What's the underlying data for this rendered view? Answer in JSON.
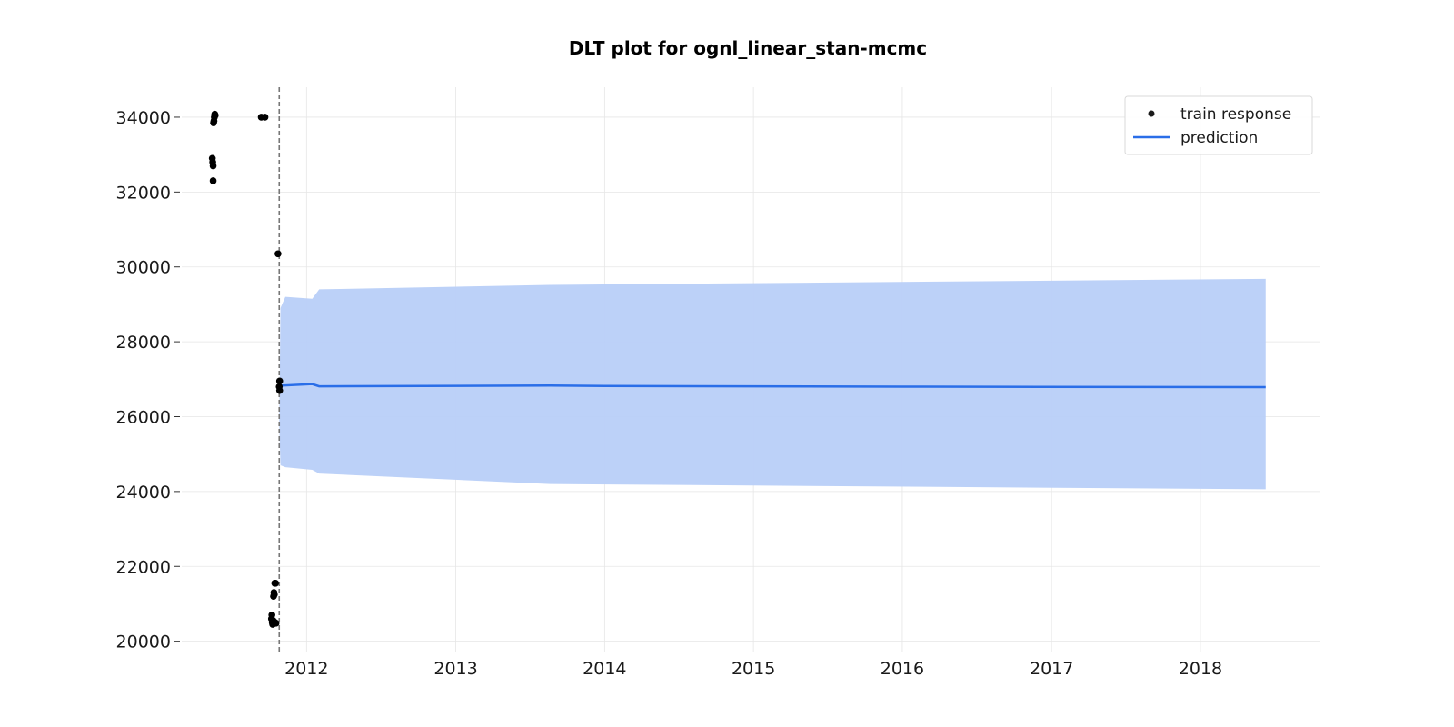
{
  "chart_data": {
    "type": "line",
    "title": "DLT plot for ognl_linear_stan-mcmc",
    "xlabel": "",
    "ylabel": "",
    "grid": true,
    "legend_position": "top-right",
    "xlim": [
      "2011-03-01",
      "2018-10-20"
    ],
    "ylim": [
      19700,
      34800
    ],
    "x_ticks": [
      "2012",
      "2013",
      "2014",
      "2015",
      "2016",
      "2017",
      "2018"
    ],
    "y_ticks": [
      20000,
      22000,
      24000,
      26000,
      28000,
      30000,
      32000,
      34000
    ],
    "y_tick_labels": [
      "20000",
      "22000",
      "24000",
      "26000",
      "28000",
      "30000",
      "32000",
      "34000"
    ],
    "training_end_marker": "2011-10-26",
    "series": [
      {
        "name": "train response",
        "kind": "scatter",
        "color": "#000000",
        "points": [
          {
            "x": "2011-05-15",
            "y": 32900
          },
          {
            "x": "2011-05-16",
            "y": 32800
          },
          {
            "x": "2011-05-17",
            "y": 32700
          },
          {
            "x": "2011-05-17",
            "y": 32300
          },
          {
            "x": "2011-05-18",
            "y": 33850
          },
          {
            "x": "2011-05-19",
            "y": 33900
          },
          {
            "x": "2011-05-20",
            "y": 34000
          },
          {
            "x": "2011-05-21",
            "y": 34080
          },
          {
            "x": "2011-05-22",
            "y": 34050
          },
          {
            "x": "2011-09-12",
            "y": 34000
          },
          {
            "x": "2011-09-21",
            "y": 34000
          },
          {
            "x": "2011-10-07",
            "y": 20600
          },
          {
            "x": "2011-10-08",
            "y": 20700
          },
          {
            "x": "2011-10-09",
            "y": 20500
          },
          {
            "x": "2011-10-10",
            "y": 20450
          },
          {
            "x": "2011-10-11",
            "y": 20550
          },
          {
            "x": "2011-10-12",
            "y": 21200
          },
          {
            "x": "2011-10-13",
            "y": 21300
          },
          {
            "x": "2011-10-14",
            "y": 21250
          },
          {
            "x": "2011-10-15",
            "y": 21550
          },
          {
            "x": "2011-10-16",
            "y": 20500
          },
          {
            "x": "2011-10-17",
            "y": 21550
          },
          {
            "x": "2011-10-18",
            "y": 20480
          },
          {
            "x": "2011-10-23",
            "y": 30350
          },
          {
            "x": "2011-10-26",
            "y": 26800
          },
          {
            "x": "2011-10-27",
            "y": 26950
          },
          {
            "x": "2011-10-27",
            "y": 26700
          }
        ]
      },
      {
        "name": "prediction",
        "kind": "line",
        "color": "#2a6ee8",
        "points": [
          {
            "x": "2011-10-26",
            "y": 26800
          },
          {
            "x": "2011-11-01",
            "y": 26830
          },
          {
            "x": "2012-01-15",
            "y": 26870
          },
          {
            "x": "2012-02-01",
            "y": 26810
          },
          {
            "x": "2013-08-20",
            "y": 26830
          },
          {
            "x": "2014-01-01",
            "y": 26820
          },
          {
            "x": "2016-01-01",
            "y": 26800
          },
          {
            "x": "2018-06-10",
            "y": 26790
          }
        ]
      }
    ],
    "uncertainty_band": {
      "series": "prediction",
      "color": "#b8cff8",
      "upper": [
        {
          "x": "2011-10-26",
          "y": 25800
        },
        {
          "x": "2011-10-29",
          "y": 28900
        },
        {
          "x": "2011-11-10",
          "y": 29200
        },
        {
          "x": "2012-01-15",
          "y": 29150
        },
        {
          "x": "2012-02-01",
          "y": 29400
        },
        {
          "x": "2013-08-20",
          "y": 29520
        },
        {
          "x": "2018-06-10",
          "y": 29680
        }
      ],
      "lower": [
        {
          "x": "2011-10-26",
          "y": 25800
        },
        {
          "x": "2011-10-29",
          "y": 24700
        },
        {
          "x": "2011-11-10",
          "y": 24650
        },
        {
          "x": "2012-01-15",
          "y": 24580
        },
        {
          "x": "2012-02-01",
          "y": 24480
        },
        {
          "x": "2013-08-20",
          "y": 24200
        },
        {
          "x": "2018-06-10",
          "y": 24060
        }
      ]
    }
  }
}
